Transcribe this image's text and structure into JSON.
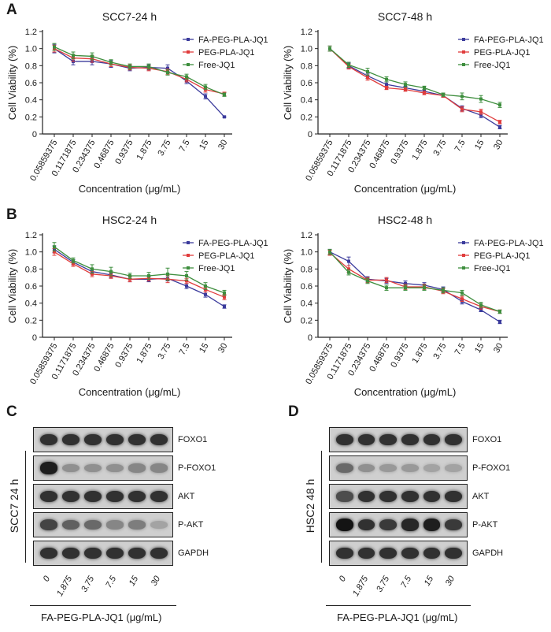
{
  "panels": {
    "A": "A",
    "B": "B",
    "C": "C",
    "D": "D"
  },
  "series_colors": {
    "FA-PEG-PLA-JQ1": "#3b3b9c",
    "PEG-PLA-JQ1": "#e03c3c",
    "Free-JQ1": "#3e8e3e"
  },
  "chart_data": [
    {
      "type": "line",
      "title": "SCC7-24 h",
      "xlabel": "Concentration (μg/mL)",
      "ylabel": "Cell Viability (%)",
      "categories": [
        "0.05859375",
        "0.1171875",
        "0.234375",
        "0.46875",
        "0.9375",
        "1.875",
        "3.75",
        "7.5",
        "15",
        "30"
      ],
      "yticks": [
        "0",
        "0.2",
        "0.4",
        "0.6",
        "0.8",
        "1.0",
        "1.2"
      ],
      "ylim": [
        0,
        1.2
      ],
      "legend": "top-right",
      "series": [
        {
          "name": "FA-PEG-PLA-JQ1",
          "values": [
            1.0,
            0.85,
            0.85,
            0.82,
            0.77,
            0.78,
            0.77,
            0.62,
            0.44,
            0.2
          ],
          "errors": [
            0.05,
            0.04,
            0.04,
            0.04,
            0.03,
            0.03,
            0.04,
            0.03,
            0.03,
            0.01
          ]
        },
        {
          "name": "PEG-PLA-JQ1",
          "values": [
            1.0,
            0.89,
            0.88,
            0.82,
            0.78,
            0.77,
            0.73,
            0.64,
            0.52,
            0.47
          ],
          "errors": [
            0.04,
            0.04,
            0.04,
            0.03,
            0.03,
            0.03,
            0.03,
            0.03,
            0.03,
            0.02
          ]
        },
        {
          "name": "Free-JQ1",
          "values": [
            1.02,
            0.92,
            0.91,
            0.84,
            0.79,
            0.79,
            0.72,
            0.67,
            0.55,
            0.46
          ],
          "errors": [
            0.04,
            0.04,
            0.04,
            0.03,
            0.03,
            0.03,
            0.03,
            0.03,
            0.03,
            0.02
          ]
        }
      ]
    },
    {
      "type": "line",
      "title": "SCC7-48 h",
      "xlabel": "Concentration (μg/mL)",
      "ylabel": "Cell Viability (%)",
      "categories": [
        "0.05859375",
        "0.1171875",
        "0.234375",
        "0.46875",
        "0.9375",
        "1.875",
        "3.75",
        "7.5",
        "15",
        "30"
      ],
      "yticks": [
        "0",
        "0.2",
        "0.4",
        "0.6",
        "0.8",
        "1.0",
        "1.2"
      ],
      "ylim": [
        0,
        1.2
      ],
      "legend": "top-right",
      "series": [
        {
          "name": "FA-PEG-PLA-JQ1",
          "values": [
            1.0,
            0.8,
            0.68,
            0.58,
            0.54,
            0.5,
            0.45,
            0.3,
            0.22,
            0.08
          ],
          "errors": [
            0.03,
            0.03,
            0.03,
            0.03,
            0.02,
            0.02,
            0.02,
            0.03,
            0.03,
            0.02
          ]
        },
        {
          "name": "PEG-PLA-JQ1",
          "values": [
            1.0,
            0.79,
            0.66,
            0.54,
            0.52,
            0.48,
            0.45,
            0.29,
            0.26,
            0.14
          ],
          "errors": [
            0.03,
            0.03,
            0.03,
            0.02,
            0.02,
            0.02,
            0.02,
            0.03,
            0.03,
            0.02
          ]
        },
        {
          "name": "Free-JQ1",
          "values": [
            1.0,
            0.81,
            0.73,
            0.64,
            0.58,
            0.54,
            0.46,
            0.44,
            0.41,
            0.34
          ],
          "errors": [
            0.03,
            0.03,
            0.04,
            0.03,
            0.03,
            0.02,
            0.02,
            0.04,
            0.04,
            0.03
          ]
        }
      ]
    },
    {
      "type": "line",
      "title": "HSC2-24 h",
      "xlabel": "Concentration (μg/mL)",
      "ylabel": "Cell Viability (%)",
      "categories": [
        "0.05859375",
        "0.1171875",
        "0.234375",
        "0.46875",
        "0.9375",
        "1.875",
        "3.75",
        "7.5",
        "15",
        "30"
      ],
      "yticks": [
        "0",
        "0.2",
        "0.4",
        "0.6",
        "0.8",
        "1.0",
        "1.2"
      ],
      "ylim": [
        0,
        1.2
      ],
      "legend": "top-right",
      "series": [
        {
          "name": "FA-PEG-PLA-JQ1",
          "values": [
            1.03,
            0.88,
            0.77,
            0.73,
            0.68,
            0.68,
            0.69,
            0.6,
            0.5,
            0.36
          ],
          "errors": [
            0.04,
            0.03,
            0.03,
            0.03,
            0.03,
            0.03,
            0.03,
            0.03,
            0.03,
            0.02
          ]
        },
        {
          "name": "PEG-PLA-JQ1",
          "values": [
            1.0,
            0.86,
            0.74,
            0.72,
            0.68,
            0.69,
            0.68,
            0.66,
            0.56,
            0.47
          ],
          "errors": [
            0.04,
            0.03,
            0.03,
            0.03,
            0.03,
            0.03,
            0.04,
            0.03,
            0.03,
            0.03
          ]
        },
        {
          "name": "Free-JQ1",
          "values": [
            1.06,
            0.9,
            0.8,
            0.77,
            0.72,
            0.72,
            0.74,
            0.72,
            0.6,
            0.52
          ],
          "errors": [
            0.05,
            0.03,
            0.05,
            0.05,
            0.03,
            0.04,
            0.07,
            0.05,
            0.04,
            0.03
          ]
        }
      ]
    },
    {
      "type": "line",
      "title": "HSC2-48 h",
      "xlabel": "Concentration (μg/mL)",
      "ylabel": "Cell Viability (%)",
      "categories": [
        "0.05859375",
        "0.1171875",
        "0.234375",
        "0.46875",
        "0.9375",
        "1.875",
        "3.75",
        "7.5",
        "15",
        "30"
      ],
      "yticks": [
        "0",
        "0.2",
        "0.4",
        "0.6",
        "0.8",
        "1.0",
        "1.2"
      ],
      "ylim": [
        0,
        1.2
      ],
      "legend": "top-right",
      "series": [
        {
          "name": "FA-PEG-PLA-JQ1",
          "values": [
            1.0,
            0.89,
            0.68,
            0.66,
            0.63,
            0.61,
            0.56,
            0.42,
            0.32,
            0.18
          ],
          "errors": [
            0.03,
            0.05,
            0.03,
            0.03,
            0.03,
            0.03,
            0.03,
            0.03,
            0.02,
            0.02
          ]
        },
        {
          "name": "PEG-PLA-JQ1",
          "values": [
            0.99,
            0.8,
            0.67,
            0.67,
            0.59,
            0.59,
            0.54,
            0.45,
            0.36,
            0.3
          ],
          "errors": [
            0.03,
            0.04,
            0.03,
            0.03,
            0.03,
            0.03,
            0.03,
            0.03,
            0.03,
            0.02
          ]
        },
        {
          "name": "Free-JQ1",
          "values": [
            1.0,
            0.76,
            0.66,
            0.58,
            0.58,
            0.58,
            0.55,
            0.52,
            0.38,
            0.3
          ],
          "errors": [
            0.03,
            0.03,
            0.03,
            0.03,
            0.03,
            0.03,
            0.03,
            0.03,
            0.03,
            0.02
          ]
        }
      ]
    }
  ],
  "blots": [
    {
      "side_label": "SCC7 24 h",
      "rows": [
        {
          "label": "FOXO1",
          "intensity": [
            0.85,
            0.85,
            0.85,
            0.85,
            0.85,
            0.85
          ]
        },
        {
          "label": "P-FOXO1",
          "intensity": [
            0.95,
            0.35,
            0.35,
            0.35,
            0.4,
            0.4
          ]
        },
        {
          "label": "AKT",
          "intensity": [
            0.85,
            0.85,
            0.85,
            0.85,
            0.85,
            0.85
          ]
        },
        {
          "label": "P-AKT",
          "intensity": [
            0.75,
            0.6,
            0.55,
            0.4,
            0.45,
            0.25
          ]
        },
        {
          "label": "GAPDH",
          "intensity": [
            0.85,
            0.85,
            0.85,
            0.85,
            0.85,
            0.85
          ]
        }
      ],
      "lanes": [
        "0",
        "1.875",
        "3.75",
        "7.5",
        "15",
        "30"
      ],
      "xtitle": "FA-PEG-PLA-JQ1 (μg/mL)"
    },
    {
      "side_label": "HSC2 48 h",
      "rows": [
        {
          "label": "FOXO1",
          "intensity": [
            0.85,
            0.85,
            0.85,
            0.85,
            0.85,
            0.85
          ]
        },
        {
          "label": "P-FOXO1",
          "intensity": [
            0.55,
            0.35,
            0.3,
            0.3,
            0.25,
            0.25
          ]
        },
        {
          "label": "AKT",
          "intensity": [
            0.7,
            0.85,
            0.85,
            0.85,
            0.85,
            0.85
          ]
        },
        {
          "label": "P-AKT",
          "intensity": [
            1.0,
            0.85,
            0.8,
            0.9,
            0.95,
            0.8
          ]
        },
        {
          "label": "GAPDH",
          "intensity": [
            0.85,
            0.85,
            0.85,
            0.85,
            0.85,
            0.85
          ]
        }
      ],
      "lanes": [
        "0",
        "1.875",
        "3.75",
        "7.5",
        "15",
        "30"
      ],
      "xtitle": "FA-PEG-PLA-JQ1 (μg/mL)"
    }
  ]
}
